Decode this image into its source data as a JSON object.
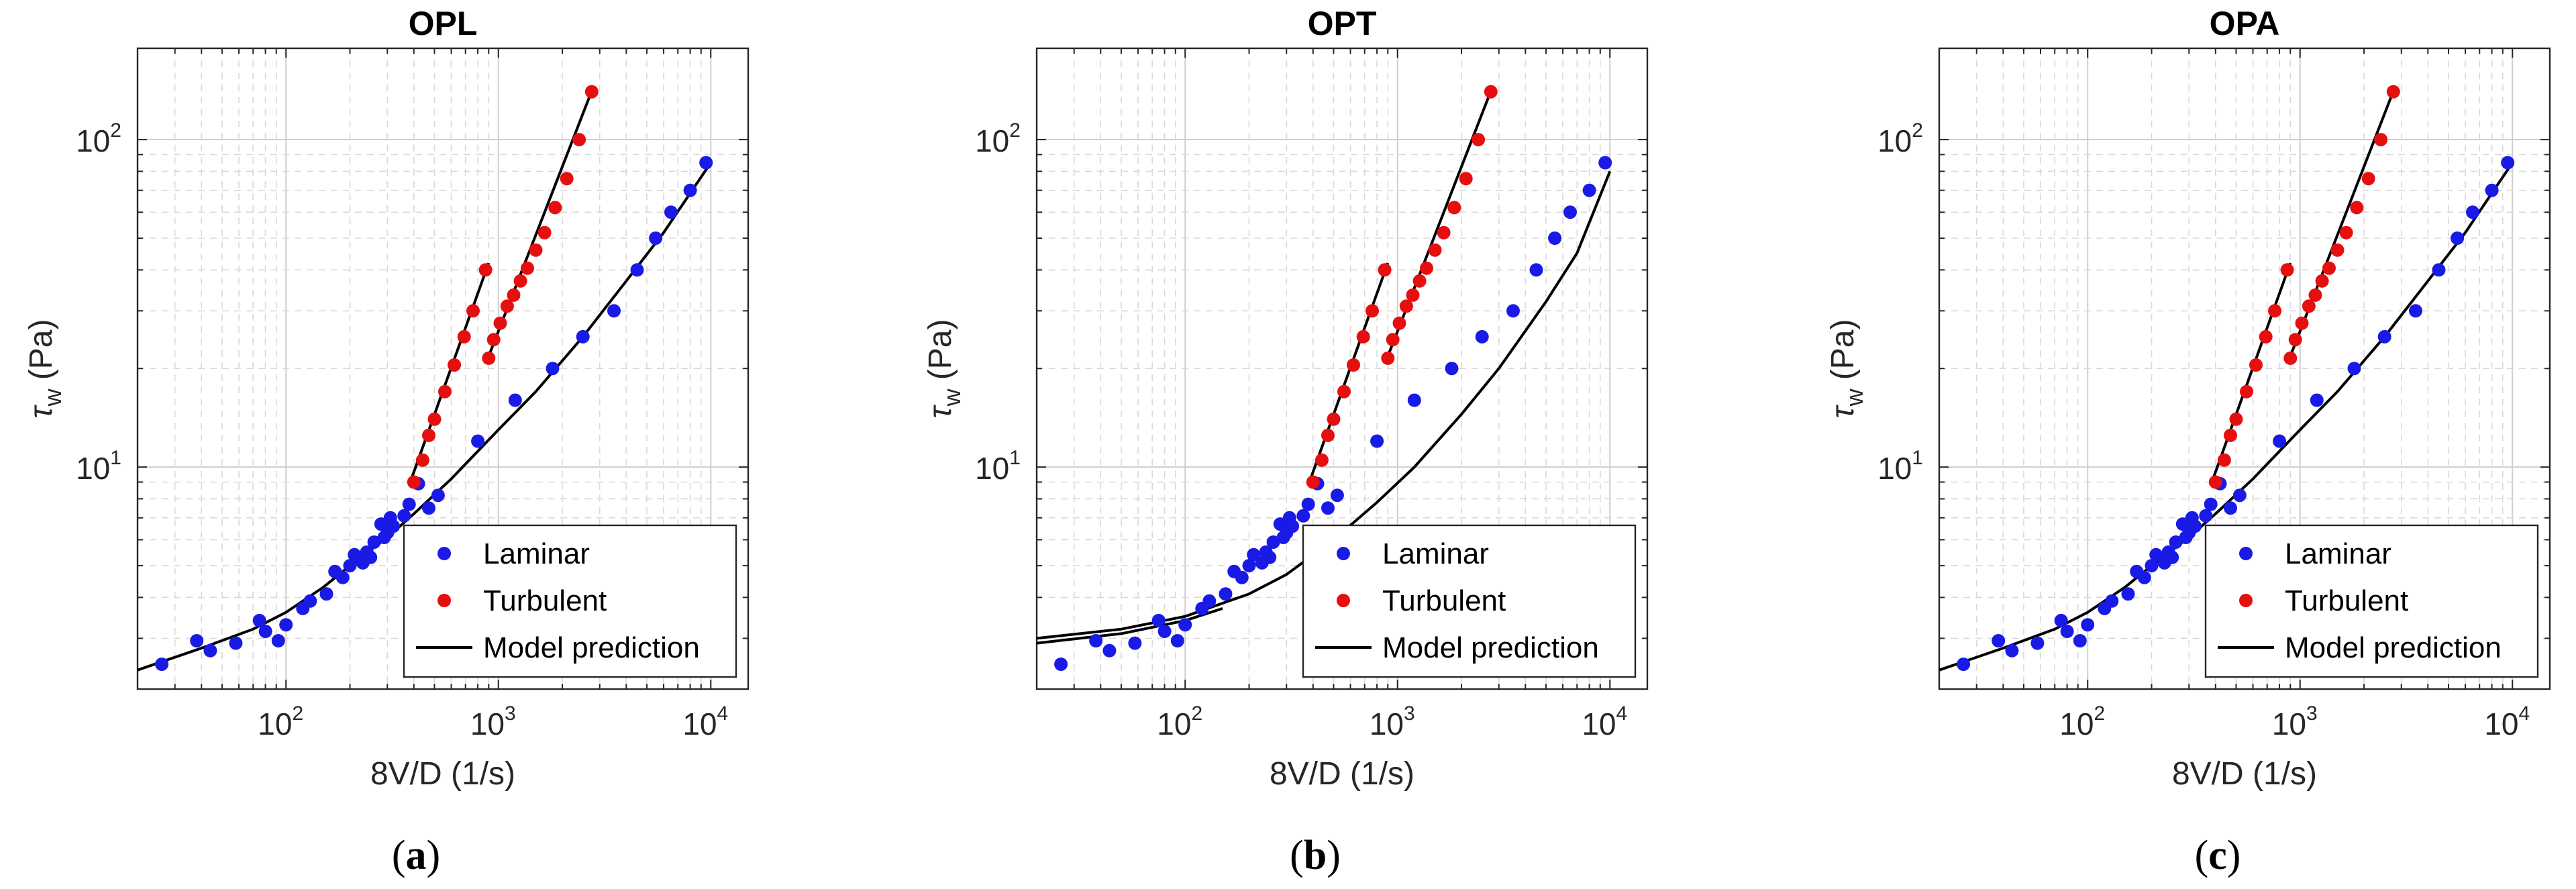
{
  "chart_data": [
    {
      "type": "scatter",
      "id": "opl",
      "title": "OPL",
      "caption": {
        "open": "(",
        "letter": "a",
        "close": ")"
      },
      "xlabel": "8V/D (1/s)",
      "ylabel": {
        "symbol": "τ",
        "sub": "w",
        "unit": " (Pa)"
      },
      "xscale": "log",
      "yscale": "log",
      "xlim": [
        20,
        15000
      ],
      "ylim": [
        2.1,
        190
      ],
      "x_ticks": [
        100,
        1000,
        10000
      ],
      "y_ticks": [
        10,
        100
      ],
      "tick_base": "10",
      "x_tick_exponents": [
        "2",
        "3",
        "4"
      ],
      "y_tick_exponents": [
        "1",
        "2"
      ],
      "grid": true,
      "legend": {
        "location": "bottom-right",
        "entries": [
          "Laminar",
          "Turbulent",
          "Model prediction"
        ]
      },
      "series": [
        {
          "name": "Laminar",
          "kind": "points",
          "color": "#1a1ae6",
          "x": [
            26,
            38,
            44,
            58,
            75,
            80,
            92,
            100,
            120,
            130,
            155,
            170,
            185,
            200,
            210,
            230,
            240,
            250,
            260,
            280,
            290,
            300,
            310,
            320,
            360,
            380,
            420,
            470,
            520,
            800,
            1200,
            1800,
            2500,
            3500,
            4500,
            5500,
            6500,
            8000,
            9500
          ],
          "y": [
            2.5,
            2.95,
            2.75,
            2.9,
            3.4,
            3.15,
            2.95,
            3.3,
            3.7,
            3.9,
            4.1,
            4.8,
            4.6,
            5.0,
            5.4,
            5.1,
            5.5,
            5.3,
            5.9,
            6.7,
            6.1,
            6.3,
            7.0,
            6.6,
            7.1,
            7.7,
            8.9,
            7.5,
            8.2,
            12,
            16,
            20,
            25,
            30,
            40,
            50,
            60,
            70,
            85
          ]
        },
        {
          "name": "Turbulent",
          "kind": "points",
          "color": "#e60f0f",
          "x": [
            400,
            440,
            470,
            500,
            560,
            620,
            690,
            760,
            870,
            900,
            950,
            1020,
            1100,
            1180,
            1270,
            1370,
            1500,
            1650,
            1850,
            2100,
            2400,
            2750
          ],
          "y": [
            9.0,
            10.5,
            12.5,
            14,
            17,
            20.5,
            25,
            30,
            40,
            21.5,
            24.5,
            27.5,
            31,
            33.5,
            37,
            40.5,
            46,
            52,
            62,
            76,
            100,
            140
          ]
        },
        {
          "name": "Model prediction",
          "kind": "line",
          "color": "#000000",
          "x": [
            20,
            40,
            70,
            100,
            150,
            200,
            300,
            400,
            600,
            1000,
            1500,
            2500,
            4000,
            6000,
            10000
          ],
          "y": [
            2.4,
            2.8,
            3.2,
            3.6,
            4.3,
            5.0,
            6.1,
            7.2,
            9.2,
            13,
            17,
            25,
            37,
            52,
            85
          ]
        },
        {
          "name": "Turbulent fit 1",
          "kind": "line",
          "color": "#000000",
          "x": [
            380,
            900
          ],
          "y": [
            8.8,
            42
          ]
        },
        {
          "name": "Turbulent fit 2",
          "kind": "line",
          "color": "#000000",
          "x": [
            880,
            2800
          ],
          "y": [
            21,
            145
          ]
        }
      ]
    },
    {
      "type": "scatter",
      "id": "opt",
      "title": "OPT",
      "caption": {
        "open": "(",
        "letter": "b",
        "close": ")"
      },
      "xlabel": "8V/D (1/s)",
      "ylabel": {
        "symbol": "τ",
        "sub": "w",
        "unit": " (Pa)"
      },
      "xscale": "log",
      "yscale": "log",
      "xlim": [
        20,
        15000
      ],
      "ylim": [
        2.1,
        190
      ],
      "x_ticks": [
        100,
        1000,
        10000
      ],
      "y_ticks": [
        10,
        100
      ],
      "tick_base": "10",
      "x_tick_exponents": [
        "2",
        "3",
        "4"
      ],
      "y_tick_exponents": [
        "1",
        "2"
      ],
      "grid": true,
      "legend": {
        "location": "bottom-right",
        "entries": [
          "Laminar",
          "Turbulent",
          "Model prediction"
        ]
      },
      "series": [
        {
          "name": "Laminar",
          "kind": "points",
          "color": "#1a1ae6",
          "x": [
            26,
            38,
            44,
            58,
            75,
            80,
            92,
            100,
            120,
            130,
            155,
            170,
            185,
            200,
            210,
            230,
            240,
            250,
            260,
            280,
            290,
            300,
            310,
            320,
            360,
            380,
            420,
            470,
            520,
            800,
            1200,
            1800,
            2500,
            3500,
            4500,
            5500,
            6500,
            8000,
            9500
          ],
          "y": [
            2.5,
            2.95,
            2.75,
            2.9,
            3.4,
            3.15,
            2.95,
            3.3,
            3.7,
            3.9,
            4.1,
            4.8,
            4.6,
            5.0,
            5.4,
            5.1,
            5.5,
            5.3,
            5.9,
            6.7,
            6.1,
            6.3,
            7.0,
            6.6,
            7.1,
            7.7,
            8.9,
            7.5,
            8.2,
            12,
            16,
            20,
            25,
            30,
            40,
            50,
            60,
            70,
            85
          ]
        },
        {
          "name": "Turbulent",
          "kind": "points",
          "color": "#e60f0f",
          "x": [
            400,
            440,
            470,
            500,
            560,
            620,
            690,
            760,
            870,
            900,
            950,
            1020,
            1100,
            1180,
            1270,
            1370,
            1500,
            1650,
            1850,
            2100,
            2400,
            2750
          ],
          "y": [
            9.0,
            10.5,
            12.5,
            14,
            17,
            20.5,
            25,
            30,
            40,
            21.5,
            24.5,
            27.5,
            31,
            33.5,
            37,
            40.5,
            46,
            52,
            62,
            76,
            100,
            140
          ]
        },
        {
          "name": "Model prediction",
          "kind": "line",
          "color": "#000000",
          "x": [
            20,
            50,
            100,
            200,
            300,
            500,
            800,
            1200,
            2000,
            3000,
            5000,
            7000,
            10000
          ],
          "y": [
            3.0,
            3.2,
            3.5,
            4.1,
            4.7,
            6.0,
            7.8,
            10,
            14.5,
            20,
            32,
            45,
            80
          ]
        },
        {
          "name": "Model prediction band",
          "kind": "line",
          "color": "#000000",
          "x": [
            20,
            50,
            100,
            150
          ],
          "y": [
            2.9,
            3.1,
            3.4,
            3.7
          ]
        },
        {
          "name": "Turbulent fit 1",
          "kind": "line",
          "color": "#000000",
          "x": [
            380,
            900
          ],
          "y": [
            8.8,
            42
          ]
        },
        {
          "name": "Turbulent fit 2",
          "kind": "line",
          "color": "#000000",
          "x": [
            880,
            2800
          ],
          "y": [
            21,
            145
          ]
        }
      ]
    },
    {
      "type": "scatter",
      "id": "opa",
      "title": "OPA",
      "caption": {
        "open": "(",
        "letter": "c",
        "close": ")"
      },
      "xlabel": "8V/D (1/s)",
      "ylabel": {
        "symbol": "τ",
        "sub": "w",
        "unit": " (Pa)"
      },
      "xscale": "log",
      "yscale": "log",
      "xlim": [
        20,
        15000
      ],
      "ylim": [
        2.1,
        190
      ],
      "x_ticks": [
        100,
        1000,
        10000
      ],
      "y_ticks": [
        10,
        100
      ],
      "tick_base": "10",
      "x_tick_exponents": [
        "2",
        "3",
        "4"
      ],
      "y_tick_exponents": [
        "1",
        "2"
      ],
      "grid": true,
      "legend": {
        "location": "bottom-right",
        "entries": [
          "Laminar",
          "Turbulent",
          "Model prediction"
        ]
      },
      "series": [
        {
          "name": "Laminar",
          "kind": "points",
          "color": "#1a1ae6",
          "x": [
            26,
            38,
            44,
            58,
            75,
            80,
            92,
            100,
            120,
            130,
            155,
            170,
            185,
            200,
            210,
            230,
            240,
            250,
            260,
            280,
            290,
            300,
            310,
            320,
            360,
            380,
            420,
            470,
            520,
            800,
            1200,
            1800,
            2500,
            3500,
            4500,
            5500,
            6500,
            8000,
            9500
          ],
          "y": [
            2.5,
            2.95,
            2.75,
            2.9,
            3.4,
            3.15,
            2.95,
            3.3,
            3.7,
            3.9,
            4.1,
            4.8,
            4.6,
            5.0,
            5.4,
            5.1,
            5.5,
            5.3,
            5.9,
            6.7,
            6.1,
            6.3,
            7.0,
            6.6,
            7.1,
            7.7,
            8.9,
            7.5,
            8.2,
            12,
            16,
            20,
            25,
            30,
            40,
            50,
            60,
            70,
            85
          ]
        },
        {
          "name": "Turbulent",
          "kind": "points",
          "color": "#e60f0f",
          "x": [
            400,
            440,
            470,
            500,
            560,
            620,
            690,
            760,
            870,
            900,
            950,
            1020,
            1100,
            1180,
            1270,
            1370,
            1500,
            1650,
            1850,
            2100,
            2400,
            2750
          ],
          "y": [
            9.0,
            10.5,
            12.5,
            14,
            17,
            20.5,
            25,
            30,
            40,
            21.5,
            24.5,
            27.5,
            31,
            33.5,
            37,
            40.5,
            46,
            52,
            62,
            76,
            100,
            140
          ]
        },
        {
          "name": "Model prediction",
          "kind": "line",
          "color": "#000000",
          "x": [
            20,
            40,
            70,
            100,
            150,
            200,
            300,
            400,
            600,
            1000,
            1500,
            2500,
            4000,
            6000,
            10000
          ],
          "y": [
            2.4,
            2.8,
            3.2,
            3.6,
            4.3,
            5.0,
            6.1,
            7.2,
            9.2,
            13,
            17,
            25,
            37,
            52,
            85
          ]
        },
        {
          "name": "Turbulent fit 1",
          "kind": "line",
          "color": "#000000",
          "x": [
            380,
            900
          ],
          "y": [
            8.8,
            42
          ]
        },
        {
          "name": "Turbulent fit 2",
          "kind": "line",
          "color": "#000000",
          "x": [
            880,
            2800
          ],
          "y": [
            21,
            145
          ]
        }
      ]
    }
  ]
}
